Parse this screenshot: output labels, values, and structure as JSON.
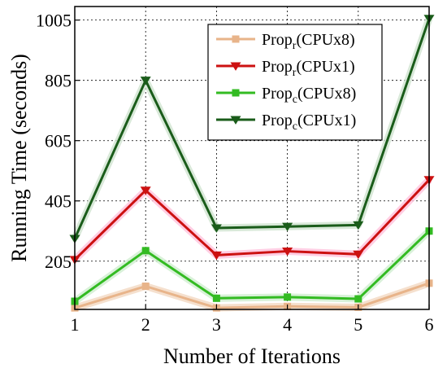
{
  "chart_data": {
    "type": "line",
    "xlabel": "Number of Iterations",
    "ylabel": "Running Time (seconds)",
    "x": [
      1,
      2,
      3,
      4,
      5,
      6
    ],
    "xticks": [
      "1",
      "2",
      "3",
      "4",
      "5",
      "6"
    ],
    "yticks": [
      205,
      405,
      605,
      805,
      1005
    ],
    "ytick_labels": [
      "205",
      "405",
      "605",
      "805",
      "1005"
    ],
    "xlim": [
      1,
      6
    ],
    "ylim": [
      45,
      1050
    ],
    "grid": true,
    "legend_position": "top-right",
    "series": [
      {
        "name": "Prop",
        "subscript": "r",
        "suffix": "(CPUx8)",
        "color": "#e8b48a",
        "glow": "#f3d8c2",
        "marker": "square",
        "values": [
          50,
          122,
          50,
          55,
          52,
          132
        ]
      },
      {
        "name": "Prop",
        "subscript": "r",
        "suffix": "(CPUx1)",
        "color": "#cc1111",
        "glow": "#ffc2dc",
        "marker": "triangle-down",
        "values": [
          210,
          440,
          225,
          238,
          228,
          475
        ]
      },
      {
        "name": "Prop",
        "subscript": "c",
        "suffix": "(CPUx8)",
        "color": "#33bb22",
        "glow": "#cfeecf",
        "marker": "square",
        "values": [
          72,
          240,
          82,
          86,
          80,
          305
        ]
      },
      {
        "name": "Prop",
        "subscript": "c",
        "suffix": "(CPUx1)",
        "color": "#1a5c1a",
        "glow": "#cfe3cf",
        "marker": "triangle-down",
        "values": [
          280,
          805,
          315,
          320,
          325,
          1010
        ]
      }
    ]
  }
}
